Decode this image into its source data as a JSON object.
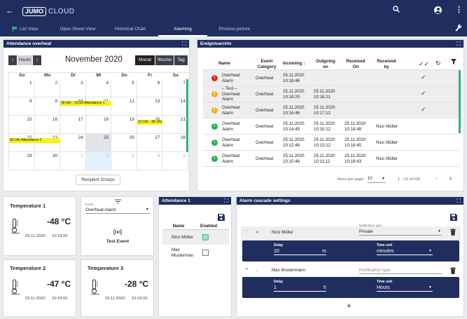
{
  "app": {
    "logo_brand": "JUMO",
    "logo_product": "CLOUD"
  },
  "nav": {
    "items": [
      {
        "label": "List View"
      },
      {
        "label": "Open Street View"
      },
      {
        "label": "Historical Chart"
      },
      {
        "label": "Alarming"
      },
      {
        "label": "Prozess picture"
      }
    ],
    "active": "Alarming"
  },
  "attendance_overview": {
    "title": "Attendance overheat",
    "today": "Heute",
    "month_label": "November 2020",
    "views": [
      "Monat",
      "Woche",
      "Tag"
    ],
    "active_view": "Monat",
    "dow": [
      "So",
      "Mo",
      "Di",
      "Mi",
      "Do",
      "Fr",
      "Sa"
    ],
    "weeks": [
      [
        "1",
        "2",
        "3",
        "4",
        "5",
        "6",
        "7"
      ],
      [
        "8",
        "9",
        "10",
        "11",
        "12",
        "13",
        "14"
      ],
      [
        "15",
        "16",
        "17",
        "18",
        "19",
        "20",
        "21"
      ],
      [
        "22",
        "23",
        "24",
        "25",
        "26",
        "27",
        "28"
      ],
      [
        "29",
        "30",
        "1",
        "2",
        "3",
        "4",
        "5"
      ]
    ],
    "events": [
      {
        "text": "06 Uhr - 23:59 Attendance 1"
      },
      {
        "text": "12 Uhr - 06 Uhr"
      },
      {
        "text": "00 Uhr Attendance 2"
      }
    ],
    "recipient_button": "Recipient Groups"
  },
  "event_archive": {
    "title": "Ereignisarchiv",
    "columns": [
      "Name",
      "Event Category",
      "Incoming",
      "Outgoing on",
      "Received On",
      "Received by"
    ],
    "rows": [
      {
        "status": "red",
        "symbol": "!",
        "name": "Overheat Alarm",
        "category": "Overheat",
        "incoming": "25.11.2020 10:18:46",
        "outgoing": "",
        "received_on": "",
        "received_by": "",
        "ack": true
      },
      {
        "status": "yellow",
        "symbol": "!",
        "name": "– Test – Overheat Alarm",
        "category": "Overheat",
        "incoming": "25.11.2020 10:18:20",
        "outgoing": "25.11.2020 10:18:21",
        "received_on": "",
        "received_by": "",
        "ack": true
      },
      {
        "status": "yellow",
        "symbol": "!",
        "name": "Overheat Alarm",
        "category": "Overheat",
        "incoming": "25.11.2020 10:16:46",
        "outgoing": "25.11.2020 10:17:12",
        "received_on": "",
        "received_by": "",
        "ack": true
      },
      {
        "status": "green",
        "symbol": "i",
        "name": "Overheat Alarm",
        "category": "Overheat",
        "incoming": "25.11.2020 10:14:45",
        "outgoing": "25.11.2020 10:15:12",
        "received_on": "25.11.2020 10:18:48",
        "received_by": "Nico Müller",
        "ack": false
      },
      {
        "status": "green",
        "symbol": "i",
        "name": "Overheat Alarm",
        "category": "Overheat",
        "incoming": "25.11.2020 10:12:46",
        "outgoing": "25.11.2020 10:13:12",
        "received_on": "25.11.2020 10:18:45",
        "received_by": "Nico Müller",
        "ack": false
      },
      {
        "status": "green",
        "symbol": "i",
        "name": "Overheat Alarm",
        "category": "Overheat",
        "incoming": "25.11.2020 10:10:46",
        "outgoing": "25.11.2020 10:11:12",
        "received_on": "25.11.2020 10:18:43",
        "received_by": "Nico Müller",
        "ack": false
      }
    ],
    "items_per_page_label": "Items per page:",
    "items_per_page": "10",
    "range": "1 – 10 of 618"
  },
  "temps": [
    {
      "title": "Temperature 1",
      "value": "-48 °C",
      "date": "25.11.2020",
      "time": "10:18:00"
    },
    {
      "title": "Temperature 2",
      "value": "-47 °C",
      "date": "25.11.2020",
      "time": "10:18:00"
    },
    {
      "title": "Temperature 3",
      "value": "-28 °C",
      "date": "25.11.2020",
      "time": "10:18:00"
    }
  ],
  "test_event": {
    "event_label": "Event",
    "event_value": "Overheat Alarm",
    "button": "Test Event"
  },
  "attendance1": {
    "title": "Attendance 1",
    "col_name": "Name",
    "col_enabled": "Enabled",
    "rows": [
      {
        "name": "Nico Müller",
        "enabled": true
      },
      {
        "name": "Max Musterman",
        "enabled": false
      }
    ]
  },
  "cascade": {
    "title": "Alarm cascade settings",
    "entries": [
      {
        "name": "Nico Müller",
        "notif_label": "Notification type",
        "notif_value": "Private",
        "delay_label": "Delay",
        "delay_value": "10",
        "delay_unit": "m",
        "time_label": "Time unit",
        "time_value": "minutes"
      },
      {
        "name": "Max Mustermann",
        "notif_label": "",
        "notif_value": "Notification type",
        "delay_label": "Delay",
        "delay_value": "1",
        "delay_unit": "h",
        "time_label": "Time unit",
        "time_value": "Hours"
      }
    ]
  },
  "colors": {
    "navy": "#1f2e5e",
    "red": "#d32f2f",
    "yellow": "#f2b21b",
    "green": "#2eaf4f",
    "event_yellow": "#f5f219",
    "teal": "#2eaf87"
  }
}
